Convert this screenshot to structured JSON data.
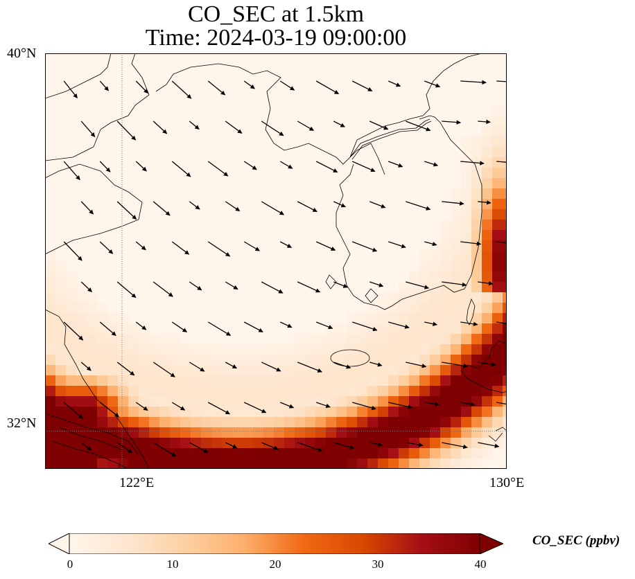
{
  "title": {
    "line1": "CO_SEC at 1.5km",
    "line2": "Time: 2024-03-19 09:00:00"
  },
  "map": {
    "lon_range": [
      120.4,
      130.0
    ],
    "lat_range": [
      31.2,
      40.0
    ],
    "gridlines": {
      "lon": [
        122,
        130
      ],
      "lat": [
        32,
        40
      ],
      "style": "dotted"
    },
    "plume": {
      "description_values": "high CO along southern and eastern edge of domain",
      "max_ppbv": 40
    }
  },
  "axes": {
    "y_ticks": [
      {
        "label": "40°N",
        "lat": 40
      },
      {
        "label": "32°N",
        "lat": 32
      }
    ],
    "x_ticks": [
      {
        "label": "122°E",
        "lon": 122
      },
      {
        "label": "130°E",
        "lon": 130
      }
    ]
  },
  "colorbar": {
    "label": "CO_SEC (ppbv)",
    "min": 0,
    "max": 40,
    "ticks": [
      "0",
      "10",
      "20",
      "30",
      "40"
    ],
    "colors": [
      "#fff5eb",
      "#fee6ce",
      "#fdd0a2",
      "#fdae6b",
      "#f16913",
      "#d94801",
      "#a50f15",
      "#7f0000"
    ],
    "extend": "both"
  }
}
